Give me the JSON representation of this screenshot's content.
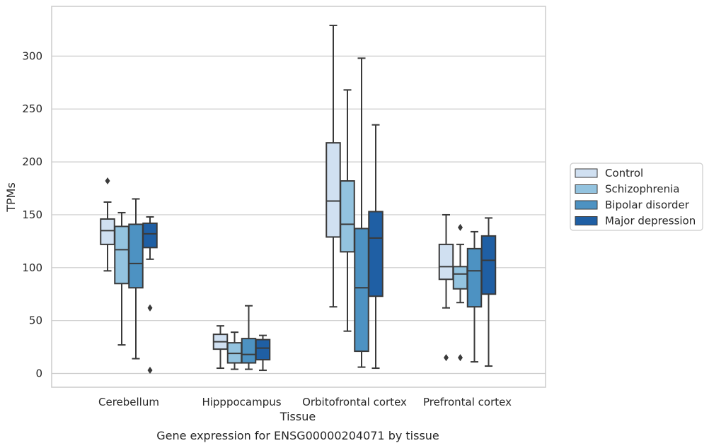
{
  "chart_data": {
    "type": "box",
    "title": "Gene expression for ENSG00000204071 by tissue",
    "xlabel": "Tissue",
    "ylabel": "TPMs",
    "ylim": [
      -13,
      347
    ],
    "yticks": [
      0,
      50,
      100,
      150,
      200,
      250,
      300
    ],
    "categories": [
      "Cerebellum",
      "Hipppocampus",
      "Orbitofrontal cortex",
      "Prefrontal cortex"
    ],
    "grid": true,
    "legend_position": "right",
    "series": [
      {
        "name": "Control",
        "color": "#d0e0f1",
        "boxes": [
          {
            "whislo": 97,
            "q1": 122,
            "med": 135,
            "q3": 146,
            "whishi": 162,
            "fliers": [
              182
            ]
          },
          {
            "whislo": 5,
            "q1": 23,
            "med": 30,
            "q3": 37,
            "whishi": 45,
            "fliers": []
          },
          {
            "whislo": 63,
            "q1": 129,
            "med": 163,
            "q3": 218,
            "whishi": 329,
            "fliers": []
          },
          {
            "whislo": 62,
            "q1": 89,
            "med": 101,
            "q3": 122,
            "whishi": 150,
            "fliers": [
              15
            ]
          }
        ]
      },
      {
        "name": "Schizophrenia",
        "color": "#93c3df",
        "boxes": [
          {
            "whislo": 27,
            "q1": 85,
            "med": 117,
            "q3": 139,
            "whishi": 152,
            "fliers": []
          },
          {
            "whislo": 4,
            "q1": 10,
            "med": 19,
            "q3": 29,
            "whishi": 39,
            "fliers": []
          },
          {
            "whislo": 40,
            "q1": 115,
            "med": 141,
            "q3": 182,
            "whishi": 268,
            "fliers": []
          },
          {
            "whislo": 67,
            "q1": 80,
            "med": 94,
            "q3": 101,
            "whishi": 122,
            "fliers": [
              138,
              15
            ]
          }
        ]
      },
      {
        "name": "Bipolar disorder",
        "color": "#4d92c2",
        "boxes": [
          {
            "whislo": 14,
            "q1": 81,
            "med": 104,
            "q3": 141,
            "whishi": 165,
            "fliers": []
          },
          {
            "whislo": 4,
            "q1": 10,
            "med": 18,
            "q3": 33,
            "whishi": 64,
            "fliers": []
          },
          {
            "whislo": 6,
            "q1": 21,
            "med": 81,
            "q3": 137,
            "whishi": 298,
            "fliers": []
          },
          {
            "whislo": 11,
            "q1": 63,
            "med": 97,
            "q3": 118,
            "whishi": 134,
            "fliers": []
          }
        ]
      },
      {
        "name": "Major depression",
        "color": "#1f5fa4",
        "boxes": [
          {
            "whislo": 108,
            "q1": 119,
            "med": 132,
            "q3": 142,
            "whishi": 148,
            "fliers": [
              62,
              3
            ]
          },
          {
            "whislo": 3,
            "q1": 13,
            "med": 24,
            "q3": 32,
            "whishi": 36,
            "fliers": []
          },
          {
            "whislo": 5,
            "q1": 73,
            "med": 128,
            "q3": 153,
            "whishi": 235,
            "fliers": []
          },
          {
            "whislo": 7,
            "q1": 75,
            "med": 107,
            "q3": 130,
            "whishi": 147,
            "fliers": []
          }
        ]
      }
    ]
  }
}
